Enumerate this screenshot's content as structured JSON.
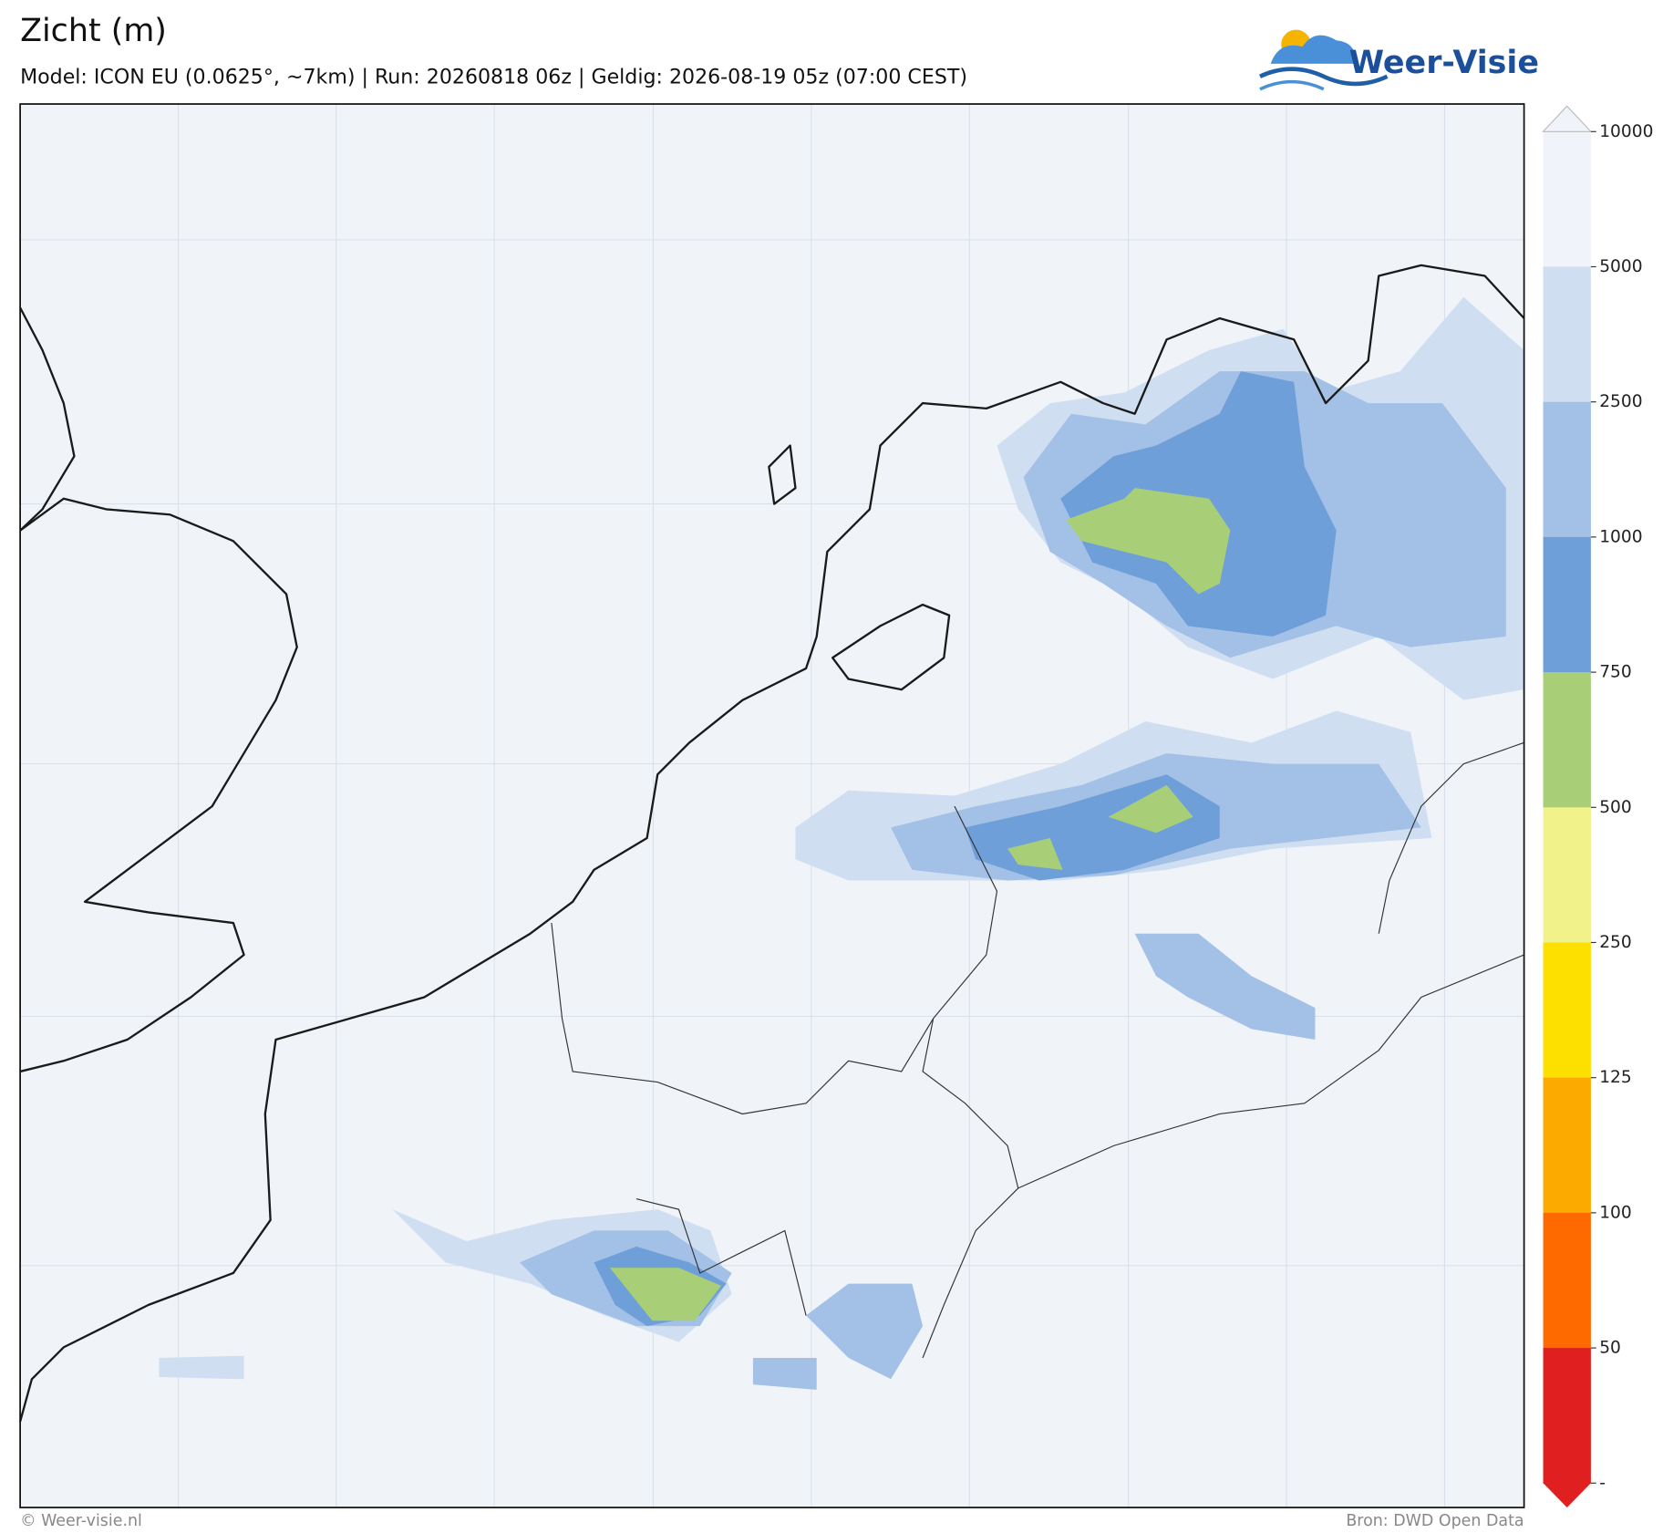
{
  "header": {
    "title": "Zicht (m)",
    "subtitle": "Model: ICON EU (0.0625°, ~7km)  |  Run: 20260818 06z  |  Geldig: 2026-08-19 05z (07:00 CEST)",
    "logo": "Weer-Visie"
  },
  "colorbar": {
    "ticks": [
      "10000",
      "5000",
      "2500",
      "1000",
      "750",
      "500",
      "250",
      "125",
      "100",
      "50",
      "-"
    ],
    "colors": [
      "#f0f4fa",
      "#cfdff1",
      "#a3c0e6",
      "#6e9fd8",
      "#a8cf78",
      "#f2f28a",
      "#fde000",
      "#fcaa00",
      "#ff6a00",
      "#e02020"
    ]
  },
  "footer": {
    "left": "© Weer-visie.nl",
    "right": "Bron: DWD Open Data"
  }
}
